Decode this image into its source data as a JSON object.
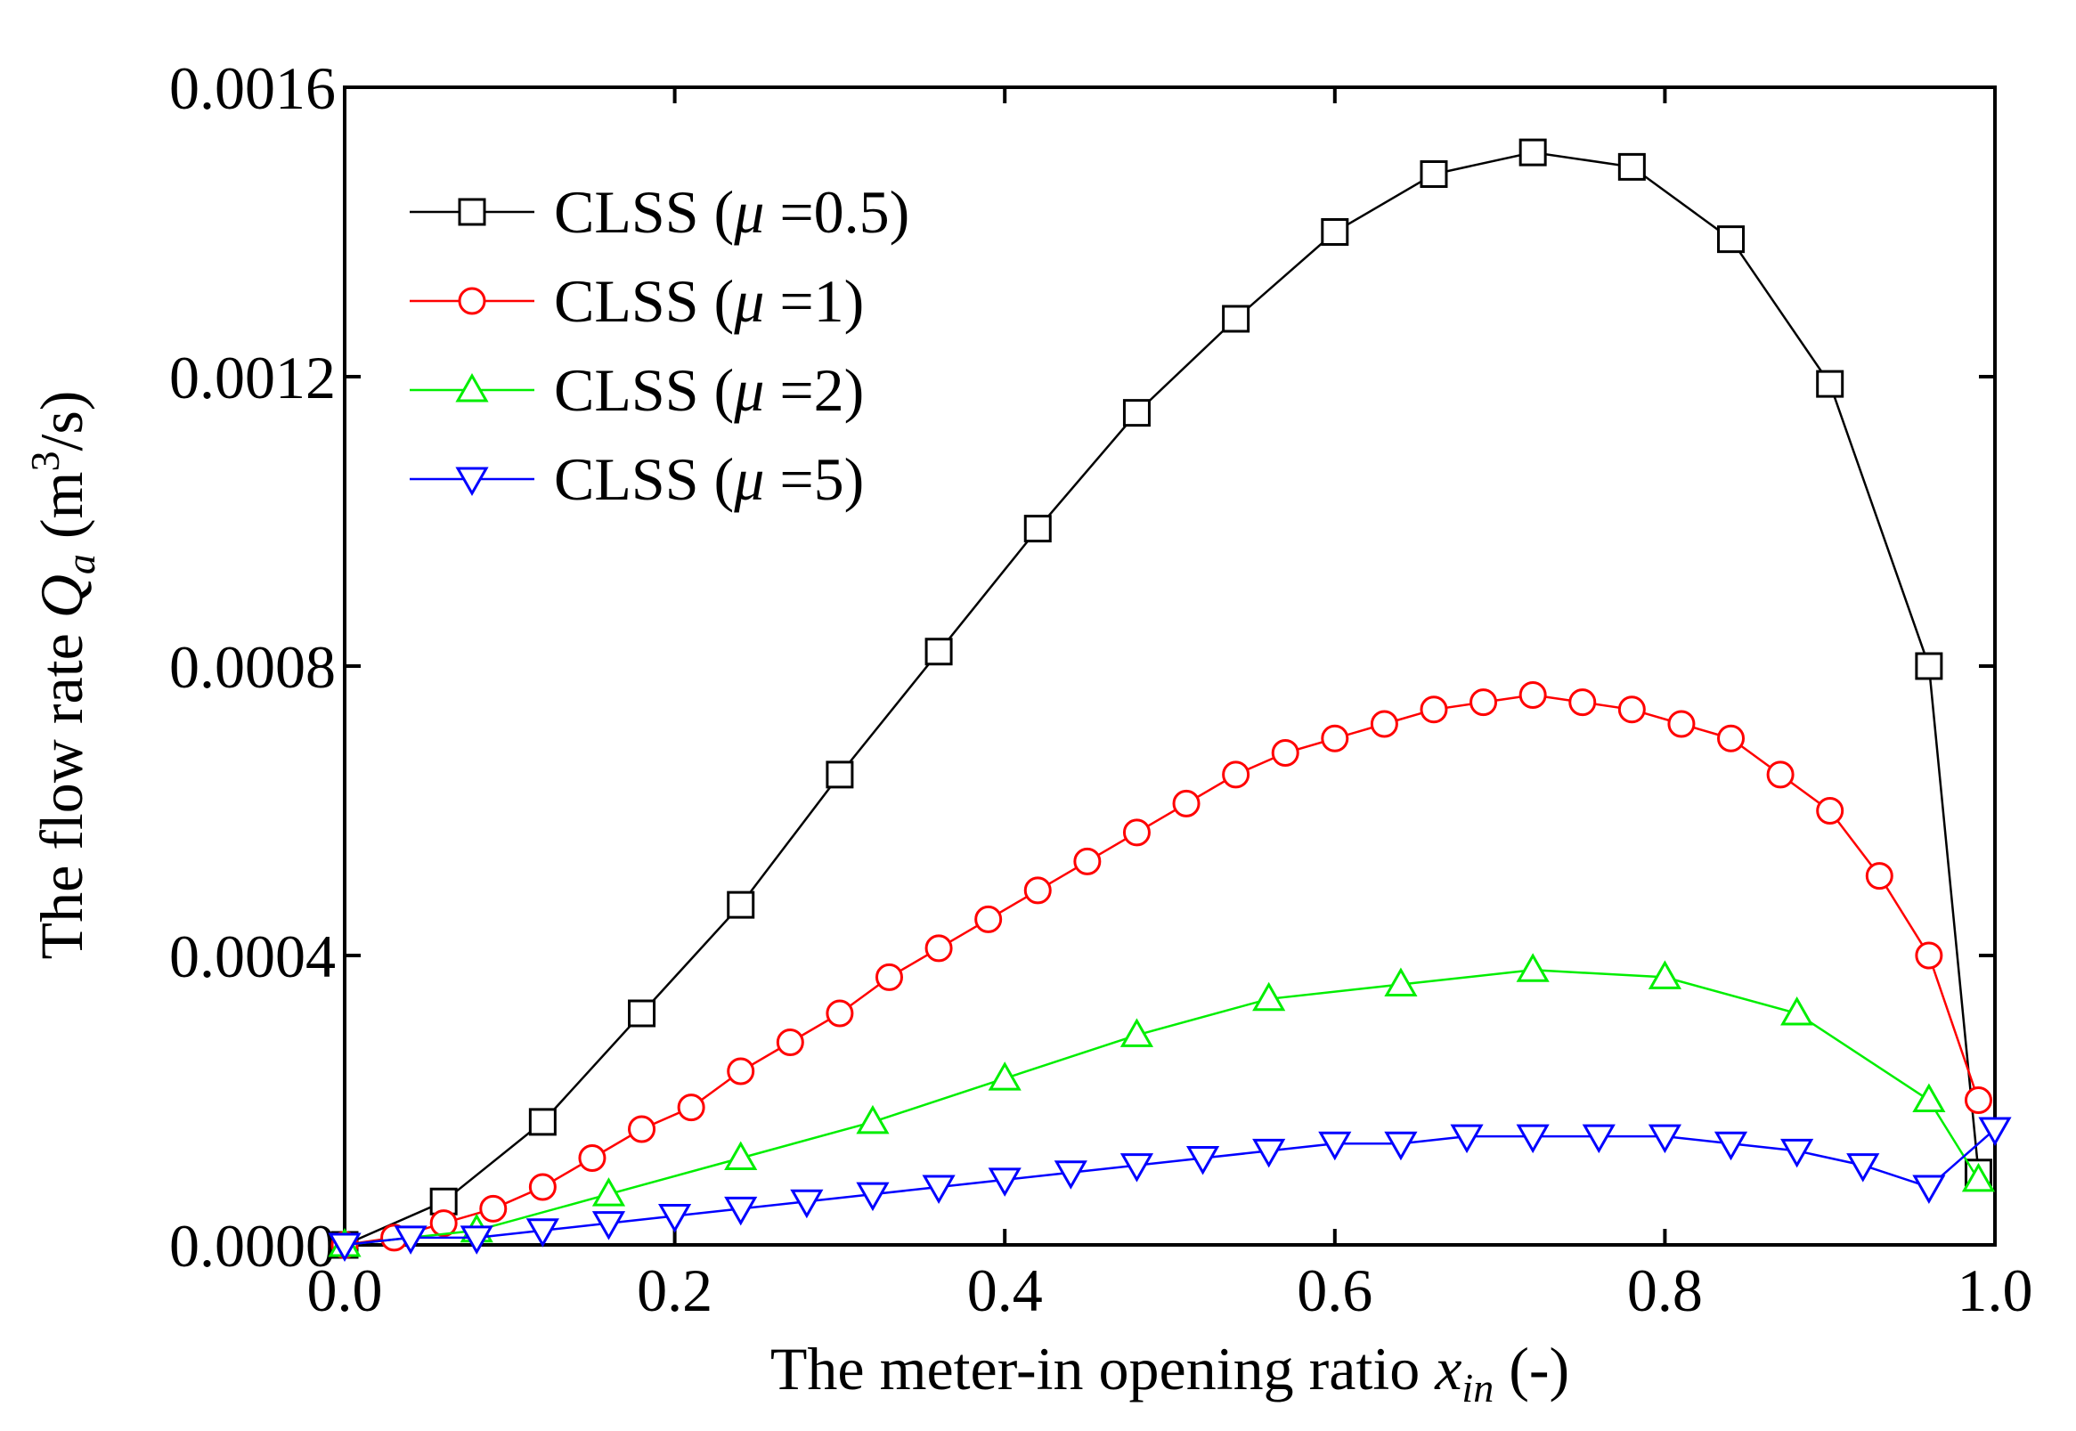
{
  "chart_data": {
    "type": "line",
    "title": "",
    "xlabel": {
      "prefix": "The meter-in opening ratio ",
      "var": "x",
      "sub": "in",
      "suffix": " (-)"
    },
    "ylabel": {
      "prefix": "The flow rate ",
      "var": "Q",
      "sub": "a",
      "unit_pre": " (m",
      "sup": "3",
      "unit_post": "/s)"
    },
    "xlim": [
      0,
      1.0
    ],
    "ylim": [
      0,
      0.0016
    ],
    "x_ticks": [
      0.0,
      0.2,
      0.4,
      0.6,
      0.8,
      1.0
    ],
    "x_tick_labels": [
      "0.0",
      "0.2",
      "0.4",
      "0.6",
      "0.8",
      "1.0"
    ],
    "y_ticks": [
      0,
      0.0004,
      0.0008,
      0.0012,
      0.0016
    ],
    "y_tick_labels": [
      "0.0000",
      "0.0004",
      "0.0008",
      "0.0012",
      "0.0016"
    ],
    "grid": false,
    "legend_position": "top-left",
    "series": [
      {
        "name": "CLSS (μ =0.5)",
        "label_prefix": "CLSS (",
        "label_var": "μ",
        "label_suffix": " =0.5)",
        "color": "#000000",
        "marker": "square",
        "x": [
          0.0,
          0.06,
          0.12,
          0.18,
          0.24,
          0.3,
          0.36,
          0.42,
          0.48,
          0.54,
          0.6,
          0.66,
          0.72,
          0.78,
          0.84,
          0.9,
          0.96,
          0.99
        ],
        "y": [
          0.0,
          6e-05,
          0.00017,
          0.00032,
          0.00047,
          0.00065,
          0.00082,
          0.00099,
          0.00115,
          0.00128,
          0.0014,
          0.00148,
          0.00151,
          0.00149,
          0.00139,
          0.00119,
          0.0008,
          0.0001
        ]
      },
      {
        "name": "CLSS (μ =1)",
        "label_prefix": "CLSS (",
        "label_var": "μ",
        "label_suffix": " =1)",
        "color": "#ff0000",
        "marker": "circle",
        "x": [
          0.0,
          0.03,
          0.06,
          0.09,
          0.12,
          0.15,
          0.18,
          0.21,
          0.24,
          0.27,
          0.3,
          0.33,
          0.36,
          0.39,
          0.42,
          0.45,
          0.48,
          0.51,
          0.54,
          0.57,
          0.6,
          0.63,
          0.66,
          0.69,
          0.72,
          0.75,
          0.78,
          0.81,
          0.84,
          0.87,
          0.9,
          0.93,
          0.96,
          0.99
        ],
        "y": [
          0.0,
          1e-05,
          3e-05,
          5e-05,
          8e-05,
          0.00012,
          0.00016,
          0.00019,
          0.00024,
          0.00028,
          0.00032,
          0.00037,
          0.00041,
          0.00045,
          0.00049,
          0.00053,
          0.00057,
          0.00061,
          0.00065,
          0.00068,
          0.0007,
          0.00072,
          0.00074,
          0.00075,
          0.00076,
          0.00075,
          0.00074,
          0.00072,
          0.0007,
          0.00065,
          0.0006,
          0.00051,
          0.0004,
          0.0002
        ]
      },
      {
        "name": "CLSS (μ =2)",
        "label_prefix": "CLSS (",
        "label_var": "μ",
        "label_suffix": " =2)",
        "color": "#00ee00",
        "marker": "triangle-up",
        "x": [
          0.0,
          0.08,
          0.16,
          0.24,
          0.32,
          0.4,
          0.48,
          0.56,
          0.64,
          0.72,
          0.8,
          0.88,
          0.96,
          0.99
        ],
        "y": [
          0.0,
          2e-05,
          7e-05,
          0.00012,
          0.00017,
          0.00023,
          0.00029,
          0.00034,
          0.00036,
          0.00038,
          0.00037,
          0.00032,
          0.0002,
          9e-05
        ]
      },
      {
        "name": "CLSS (μ =5)",
        "label_prefix": "CLSS (",
        "label_var": "μ",
        "label_suffix": " =5)",
        "color": "#0000ff",
        "marker": "triangle-down",
        "x": [
          0.0,
          0.04,
          0.08,
          0.12,
          0.16,
          0.2,
          0.24,
          0.28,
          0.32,
          0.36,
          0.4,
          0.44,
          0.48,
          0.52,
          0.56,
          0.6,
          0.64,
          0.68,
          0.72,
          0.76,
          0.8,
          0.84,
          0.88,
          0.92,
          0.96,
          1.0
        ],
        "y": [
          0.0,
          1e-05,
          1e-05,
          2e-05,
          3e-05,
          4e-05,
          5e-05,
          6e-05,
          7e-05,
          8e-05,
          9e-05,
          0.0001,
          0.00011,
          0.00012,
          0.00013,
          0.00014,
          0.00014,
          0.00015,
          0.00015,
          0.00015,
          0.00015,
          0.00014,
          0.00013,
          0.00011,
          8e-05,
          0.00016
        ]
      }
    ]
  }
}
